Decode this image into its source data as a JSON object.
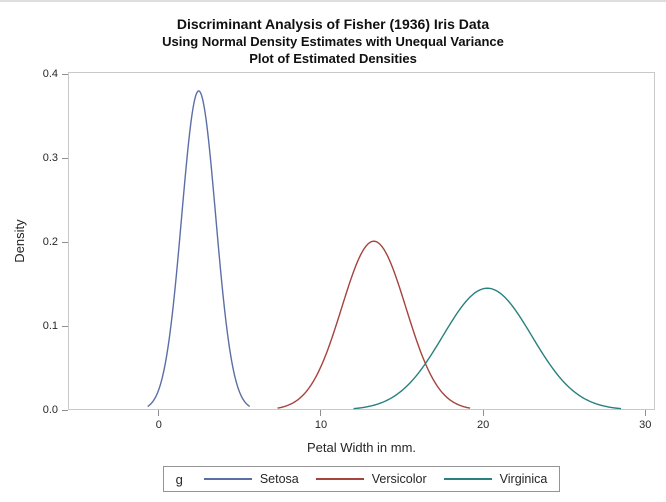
{
  "chart_data": {
    "type": "line",
    "title": "Discriminant Analysis of Fisher (1936) Iris Data",
    "subtitles": [
      "Using Normal Density Estimates with Unequal Variance",
      "Plot of Estimated Densities"
    ],
    "xlabel": "Petal Width in mm.",
    "ylabel": "Density",
    "xlim": [
      -5.6,
      30.6
    ],
    "ylim": [
      0,
      0.4025
    ],
    "xticks": [
      "0",
      "10",
      "20",
      "30"
    ],
    "yticks": [
      "0.0",
      "0.1",
      "0.2",
      "0.3",
      "0.4"
    ],
    "grid": false,
    "frame_color": "#c9c9c9",
    "tick_color": "#8f8f8f",
    "legend": {
      "title": "g",
      "position": "bottom",
      "entries": [
        "Setosa",
        "Versicolor",
        "Virginica"
      ]
    },
    "series": [
      {
        "name": "Setosa",
        "color": "#5b6fa5",
        "distribution": "normal",
        "mean": 2.46,
        "sd": 1.05,
        "peak_density": 0.38,
        "x_range": [
          -0.69,
          5.61
        ]
      },
      {
        "name": "Versicolor",
        "color": "#a5433c",
        "distribution": "normal",
        "mean": 13.26,
        "sd": 1.98,
        "peak_density": 0.201,
        "x_range": [
          7.32,
          19.2
        ]
      },
      {
        "name": "Virginica",
        "color": "#28807f",
        "distribution": "normal",
        "mean": 20.26,
        "sd": 2.75,
        "peak_density": 0.145,
        "x_range": [
          12.01,
          28.51
        ]
      }
    ]
  }
}
